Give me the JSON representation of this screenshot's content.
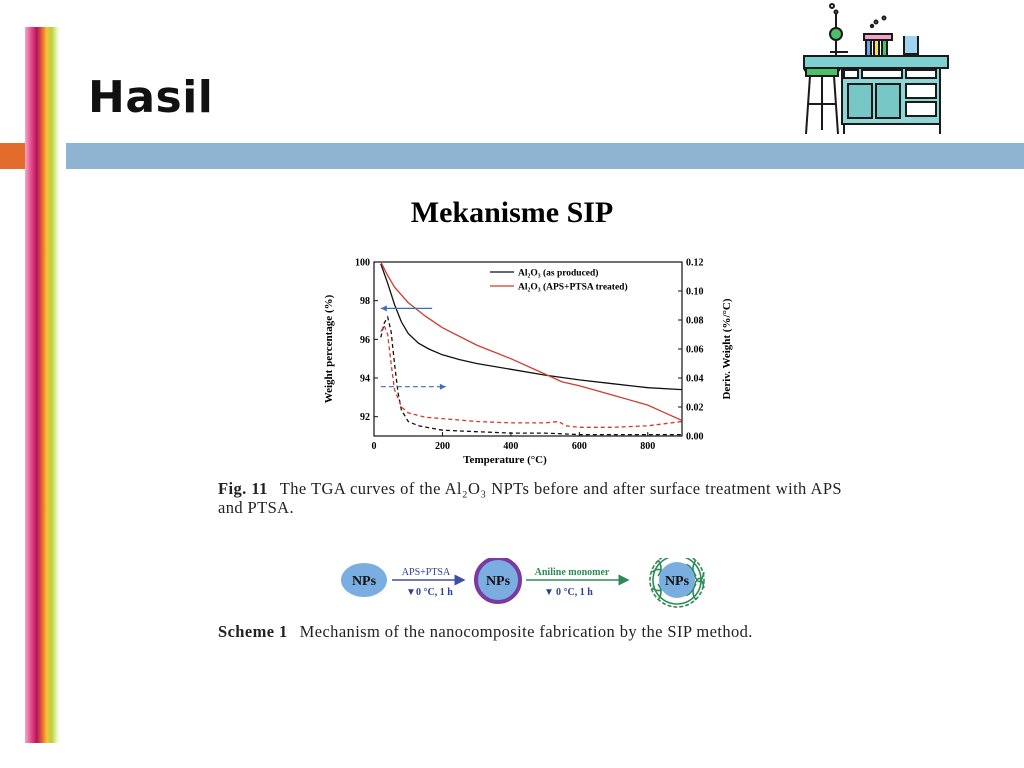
{
  "slide": {
    "title": "Hasil",
    "subtitle": "Mekanisme SIP"
  },
  "clipart": {
    "icon": "chemistry-lab-bench-icon"
  },
  "colors": {
    "blue_band": "#8fb3d3",
    "orange_tab": "#e36c2c",
    "black_curve": "#111111",
    "red_curve": "#d23a2f",
    "arrow_blue": "#3b6fc4"
  },
  "figure": {
    "label": "Fig. 11",
    "caption": "The TGA curves of the Al₂O₃ NPTs before and after surface treatment with APS and PTSA."
  },
  "chart_data": {
    "type": "line",
    "xlabel": "Temperature (°C)",
    "ylabel": "Weight percentage (%)",
    "y2label": "Deriv. Weight (%/°C)",
    "xlim": [
      0,
      900
    ],
    "ylim": [
      91,
      100
    ],
    "y2lim": [
      0,
      0.12
    ],
    "xticks": [
      "0",
      "200",
      "400",
      "600",
      "800"
    ],
    "xtick_values": [
      0,
      200,
      400,
      600,
      800
    ],
    "yticks": [
      "92",
      "94",
      "96",
      "98",
      "100"
    ],
    "ytick_values": [
      92,
      94,
      96,
      98,
      100
    ],
    "y2ticks": [
      "0.00",
      "0.02",
      "0.04",
      "0.06",
      "0.08",
      "0.10",
      "0.12"
    ],
    "y2tick_values": [
      0,
      0.02,
      0.04,
      0.06,
      0.08,
      0.1,
      0.12
    ],
    "legend_position": "top-right",
    "series": [
      {
        "name": "Al₂O₃ (as produced)",
        "axis": "left",
        "style": "solid",
        "color": "#111111",
        "x": [
          20,
          40,
          60,
          80,
          100,
          130,
          160,
          200,
          250,
          300,
          400,
          500,
          600,
          700,
          800,
          900
        ],
        "y": [
          99.9,
          98.9,
          97.8,
          96.9,
          96.3,
          95.8,
          95.5,
          95.2,
          94.95,
          94.75,
          94.45,
          94.15,
          93.9,
          93.7,
          93.5,
          93.4
        ]
      },
      {
        "name": "Al₂O₃ (APS+PTSA treated)",
        "axis": "left",
        "style": "solid",
        "color": "#d23a2f",
        "x": [
          20,
          40,
          60,
          80,
          100,
          150,
          200,
          300,
          400,
          500,
          550,
          600,
          700,
          800,
          850,
          900
        ],
        "y": [
          100,
          99.3,
          98.7,
          98.3,
          97.9,
          97.2,
          96.6,
          95.7,
          95.0,
          94.2,
          93.8,
          93.6,
          93.1,
          92.6,
          92.2,
          91.8
        ]
      },
      {
        "axis": "right",
        "style": "dashed",
        "color": "#111111",
        "x": [
          20,
          30,
          40,
          50,
          60,
          70,
          80,
          100,
          130,
          200,
          300,
          400,
          500,
          600,
          700,
          800,
          900
        ],
        "y": [
          0.068,
          0.078,
          0.082,
          0.072,
          0.05,
          0.03,
          0.018,
          0.01,
          0.007,
          0.004,
          0.003,
          0.002,
          0.002,
          0.001,
          0.001,
          0.001,
          0.001
        ]
      },
      {
        "axis": "right",
        "style": "dashed",
        "color": "#d23a2f",
        "x": [
          20,
          30,
          40,
          50,
          60,
          80,
          100,
          150,
          200,
          300,
          400,
          500,
          540,
          560,
          600,
          700,
          800,
          900
        ],
        "y": [
          0.072,
          0.076,
          0.07,
          0.05,
          0.032,
          0.02,
          0.016,
          0.013,
          0.012,
          0.01,
          0.009,
          0.009,
          0.01,
          0.007,
          0.006,
          0.006,
          0.007,
          0.01
        ]
      }
    ],
    "arrows": [
      {
        "direction": "left",
        "axis": "left",
        "x_from": 170,
        "x_to": 20,
        "y": 97.6
      },
      {
        "direction": "right",
        "axis": "right",
        "x_from": 20,
        "x_to": 210,
        "y": 0.034
      }
    ]
  },
  "scheme": {
    "label": "Scheme 1",
    "caption": "Mechanism of the nanocomposite fabrication by the SIP method.",
    "node1": "NPs",
    "node2": "NPs",
    "node3": "NPs",
    "step1_top": "APS+PTSA",
    "step1_bottom": "0 °C, 1 h",
    "step2_top": "Aniline monomer",
    "step2_bottom": "0 °C, 1 h"
  }
}
